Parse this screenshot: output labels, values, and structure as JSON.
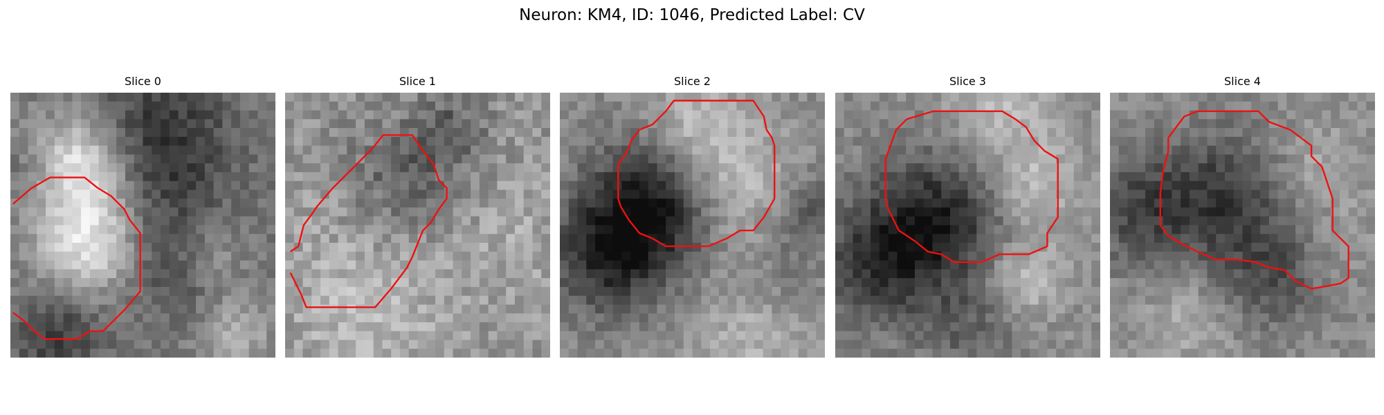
{
  "figure": {
    "title": "Neuron: KM4, ID: 1046, Predicted Label: CV"
  },
  "panels": [
    {
      "title": "Slice 0"
    },
    {
      "title": "Slice 1"
    },
    {
      "title": "Slice 2"
    },
    {
      "title": "Slice 3"
    },
    {
      "title": "Slice 4"
    }
  ],
  "colors": {
    "contour": "#ee1111",
    "colormap": "grayscale"
  }
}
